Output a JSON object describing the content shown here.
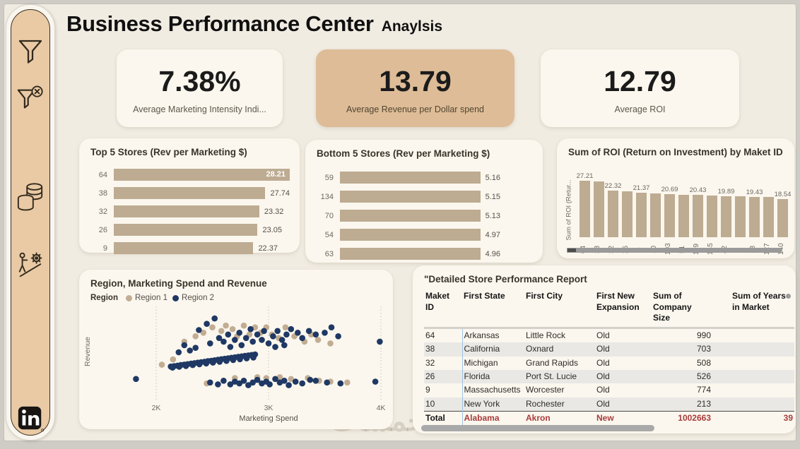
{
  "title": {
    "main": "Business Performance Center",
    "sub": "Anaylsis"
  },
  "watermark": "خمسات",
  "colors": {
    "canvas": "#f1ece2",
    "card": "#fbf7ee",
    "accent_tan": "#ddbc97",
    "bar": "#bdab92",
    "region1": "#c2ad92",
    "region2": "#1f3864",
    "total_red": "#a83c3c",
    "separator_blue": "#9dc3e6"
  },
  "sidebar": {
    "icons": [
      {
        "name": "filter"
      },
      {
        "name": "clear-filter"
      },
      {
        "name": "coins"
      },
      {
        "name": "efficiency-gear"
      },
      {
        "name": "linkedin"
      }
    ]
  },
  "kpis": [
    {
      "value": "7.38%",
      "label": "Average Marketing Intensity Indi...",
      "highlight": false
    },
    {
      "value": "13.79",
      "label": "Average Revenue per Dollar spend",
      "highlight": true
    },
    {
      "value": "12.79",
      "label": "Average ROI",
      "highlight": false
    }
  ],
  "chart_data": [
    {
      "id": "top5",
      "type": "bar",
      "orientation": "horizontal",
      "title": "Top 5 Stores (Rev per Marketing $)",
      "categories": [
        "64",
        "38",
        "32",
        "26",
        "9"
      ],
      "values": [
        28.21,
        27.74,
        23.32,
        23.05,
        22.37
      ],
      "xlim": [
        0,
        28.21
      ],
      "value_labels": "max_inside",
      "grid": false
    },
    {
      "id": "bottom5",
      "type": "bar",
      "orientation": "horizontal",
      "title": "Bottom 5 Stores (Rev per Marketing $)",
      "categories": [
        "59",
        "134",
        "70",
        "54",
        "63"
      ],
      "values": [
        5.16,
        5.15,
        5.13,
        4.97,
        4.96
      ],
      "xlim": [
        0,
        5.16
      ],
      "value_labels": "outside",
      "grid": false
    },
    {
      "id": "roi",
      "type": "bar",
      "orientation": "vertical",
      "title": "Sum of ROI (Return on Investment) by Maket ID",
      "ylabel": "Sum of ROI (Retur...",
      "categories": [
        "64",
        "38",
        "32",
        "26",
        "9",
        "10",
        "103",
        "51",
        "119",
        "145",
        "42",
        "5",
        "18",
        "127",
        "140"
      ],
      "values": [
        27.21,
        27.0,
        22.32,
        22.2,
        21.37,
        21.0,
        20.69,
        20.5,
        20.43,
        20.1,
        19.89,
        19.7,
        19.43,
        19.3,
        18.54
      ],
      "value_label_strings": [
        "27.21",
        "",
        "22.32",
        "",
        "21.37",
        "",
        "20.69",
        "",
        "20.43",
        "",
        "19.89",
        "",
        "19.43",
        "",
        "18.54"
      ],
      "ylim": [
        0,
        27.21
      ],
      "has_horizontal_scrollbar": true
    },
    {
      "id": "scatter",
      "type": "scatter",
      "title": "Region, Marketing Spend and Revenue",
      "legend_title": "Region",
      "xlabel": "Marketing Spend",
      "ylabel": "Revenue",
      "xlim": [
        1800,
        4100
      ],
      "ylim": [
        0,
        100
      ],
      "xticks": [
        {
          "v": 2000,
          "label": "2K"
        },
        {
          "v": 3000,
          "label": "3K"
        },
        {
          "v": 4000,
          "label": "4K"
        }
      ],
      "grid": "vertical-dotted",
      "series": [
        {
          "name": "Region 1",
          "color": "#c2ad92",
          "points": [
            [
              2420,
              72
            ],
            [
              2500,
              78
            ],
            [
              2580,
              74
            ],
            [
              2620,
              80
            ],
            [
              2680,
              76
            ],
            [
              2720,
              68
            ],
            [
              2780,
              80
            ],
            [
              2830,
              70
            ],
            [
              2880,
              78
            ],
            [
              2930,
              72
            ],
            [
              2980,
              78
            ],
            [
              3030,
              70
            ],
            [
              3090,
              66
            ],
            [
              3150,
              78
            ],
            [
              3230,
              68
            ],
            [
              3320,
              62
            ],
            [
              3380,
              70
            ],
            [
              3440,
              64
            ],
            [
              2350,
              68
            ],
            [
              2250,
              62
            ],
            [
              3550,
              60
            ],
            [
              2050,
              36
            ],
            [
              2150,
              42
            ],
            [
              2450,
              15
            ],
            [
              2980,
              21
            ],
            [
              3200,
              20
            ],
            [
              3350,
              21
            ],
            [
              3450,
              18
            ],
            [
              3550,
              17
            ],
            [
              3700,
              16
            ],
            [
              3100,
              22
            ],
            [
              2900,
              22
            ],
            [
              2700,
              21
            ]
          ]
        },
        {
          "name": "Region 2",
          "color": "#1f3864",
          "points": [
            [
              2450,
              82
            ],
            [
              2520,
              88
            ],
            [
              2380,
              75
            ],
            [
              2560,
              66
            ],
            [
              2600,
              62
            ],
            [
              2640,
              70
            ],
            [
              2700,
              64
            ],
            [
              2740,
              72
            ],
            [
              2760,
              58
            ],
            [
              2800,
              66
            ],
            [
              2840,
              76
            ],
            [
              2860,
              62
            ],
            [
              2900,
              70
            ],
            [
              2940,
              64
            ],
            [
              2960,
              74
            ],
            [
              3000,
              60
            ],
            [
              3040,
              68
            ],
            [
              3080,
              74
            ],
            [
              3120,
              64
            ],
            [
              3160,
              70
            ],
            [
              3200,
              76
            ],
            [
              3260,
              72
            ],
            [
              3300,
              66
            ],
            [
              3360,
              74
            ],
            [
              3420,
              70
            ],
            [
              3500,
              72
            ],
            [
              3560,
              78
            ],
            [
              3620,
              68
            ],
            [
              2350,
              55
            ],
            [
              2300,
              52
            ],
            [
              2250,
              58
            ],
            [
              2200,
              50
            ],
            [
              3990,
              62
            ],
            [
              2480,
              60
            ],
            [
              2660,
              56
            ],
            [
              3060,
              56
            ],
            [
              3140,
              58
            ],
            [
              1820,
              20
            ],
            [
              2480,
              16
            ],
            [
              2600,
              18
            ],
            [
              2660,
              14
            ],
            [
              2700,
              17
            ],
            [
              2740,
              15
            ],
            [
              2780,
              18
            ],
            [
              2820,
              13
            ],
            [
              2860,
              16
            ],
            [
              2900,
              19
            ],
            [
              2940,
              15
            ],
            [
              2980,
              17
            ],
            [
              3060,
              20
            ],
            [
              3100,
              16
            ],
            [
              3140,
              18
            ],
            [
              3180,
              13
            ],
            [
              3240,
              17
            ],
            [
              3300,
              15
            ],
            [
              3420,
              18
            ],
            [
              3520,
              16
            ],
            [
              3640,
              15
            ],
            [
              3950,
              17
            ],
            [
              2550,
              14
            ],
            [
              3010,
              14
            ],
            [
              3370,
              19
            ],
            [
              2130,
              34
            ],
            [
              2160,
              34.5
            ],
            [
              2190,
              35
            ],
            [
              2220,
              35.6
            ],
            [
              2250,
              36.2
            ],
            [
              2280,
              36.7
            ],
            [
              2310,
              37.2
            ],
            [
              2340,
              37.8
            ],
            [
              2370,
              38.3
            ],
            [
              2400,
              38.9
            ],
            [
              2430,
              39.4
            ],
            [
              2460,
              40
            ],
            [
              2490,
              40.5
            ],
            [
              2520,
              41
            ],
            [
              2550,
              41.6
            ],
            [
              2580,
              42.2
            ],
            [
              2610,
              42.7
            ],
            [
              2640,
              43.2
            ],
            [
              2670,
              43.8
            ],
            [
              2700,
              44.3
            ],
            [
              2730,
              44.9
            ],
            [
              2760,
              45.4
            ],
            [
              2790,
              46
            ],
            [
              2820,
              46.5
            ],
            [
              2850,
              47
            ],
            [
              2880,
              47.6
            ],
            [
              2145,
              32.8
            ],
            [
              2205,
              33.7
            ],
            [
              2265,
              34.6
            ],
            [
              2325,
              35.6
            ],
            [
              2385,
              36.5
            ],
            [
              2445,
              37.5
            ],
            [
              2505,
              38.4
            ],
            [
              2565,
              39.4
            ],
            [
              2625,
              40.3
            ],
            [
              2685,
              41.3
            ],
            [
              2745,
              42.2
            ],
            [
              2805,
              43.2
            ],
            [
              2865,
              44.1
            ]
          ]
        }
      ]
    },
    {
      "id": "detail_table",
      "type": "table",
      "title": "\"Detailed Store Performance Report",
      "columns": [
        "Maket ID",
        "First State",
        "First City",
        "First New Expansion",
        "Sum of Company Size",
        "Sum of Years in Market"
      ],
      "rows": [
        [
          "64",
          "Arkansas",
          "Little Rock",
          "Old",
          "990",
          ""
        ],
        [
          "38",
          "California",
          "Oxnard",
          "Old",
          "703",
          ""
        ],
        [
          "32",
          "Michigan",
          "Grand Rapids",
          "Old",
          "508",
          ""
        ],
        [
          "26",
          "Florida",
          "Port St. Lucie",
          "Old",
          "526",
          ""
        ],
        [
          "9",
          "Massachusetts",
          "Worcester",
          "Old",
          "774",
          ""
        ],
        [
          "10",
          "New York",
          "Rochester",
          "Old",
          "213",
          ""
        ]
      ],
      "total_row": [
        "Total",
        "Alabama",
        "Akron",
        "New",
        "1002663",
        "39"
      ]
    }
  ]
}
